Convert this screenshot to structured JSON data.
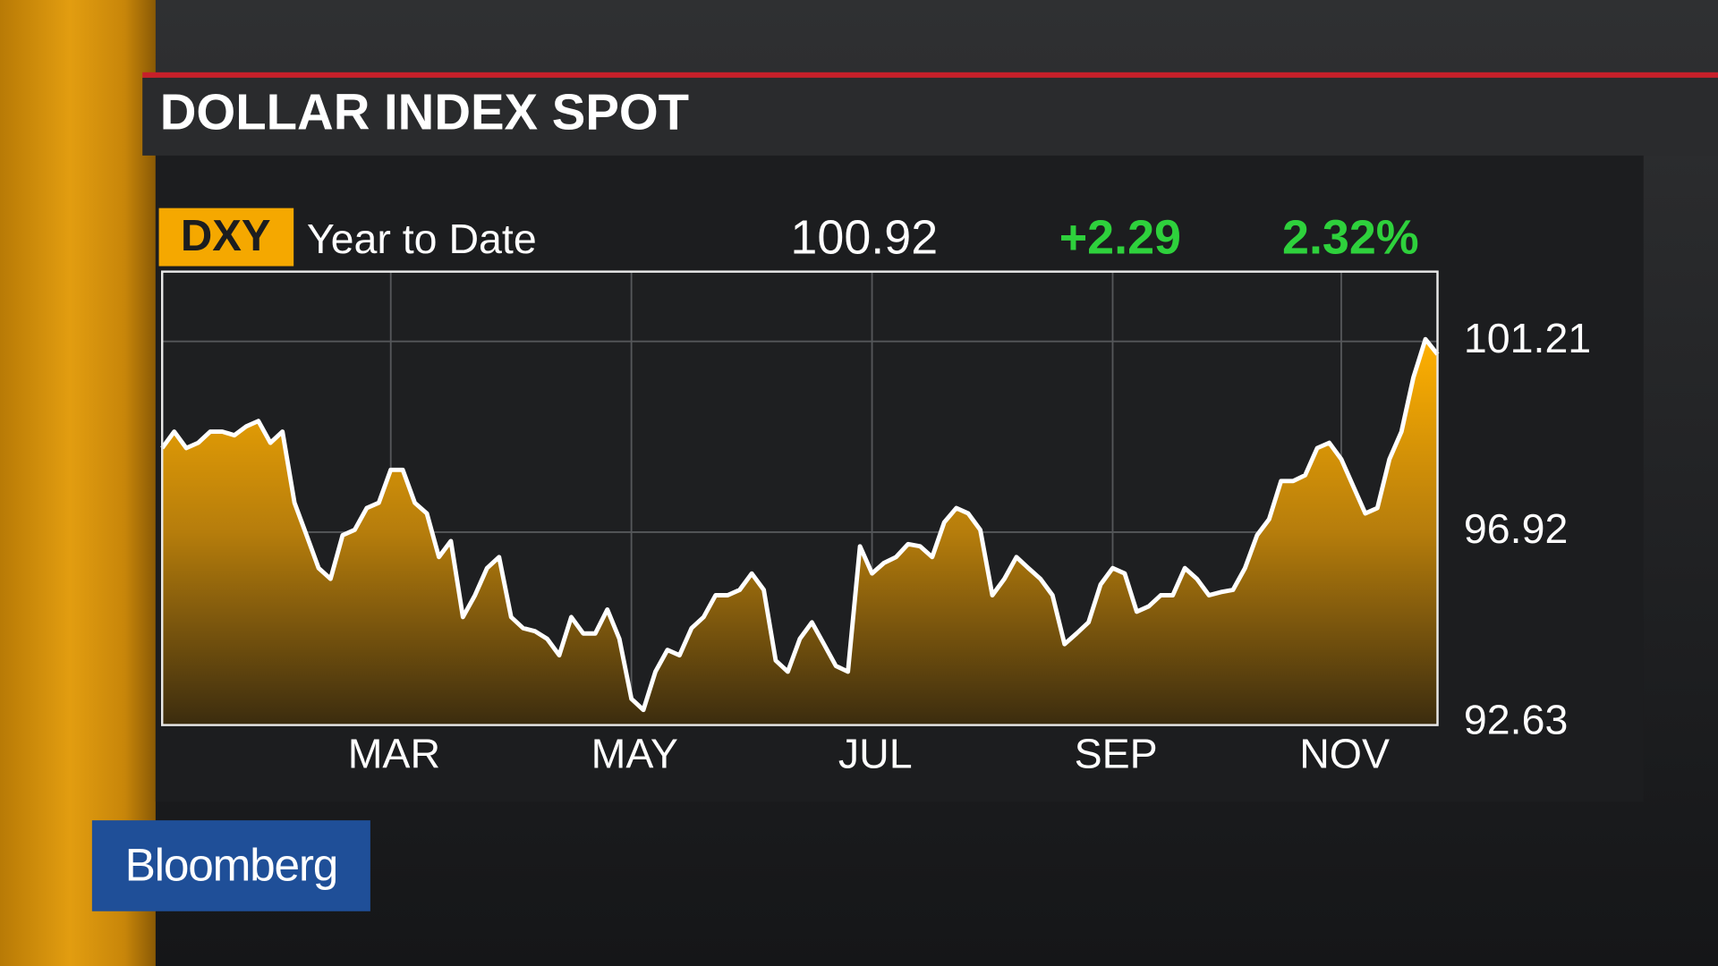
{
  "chart_data": {
    "type": "area",
    "title": "DOLLAR INDEX SPOT",
    "ticker": "DXY",
    "period": "Year to Date",
    "last": "100.92",
    "change": "+2.29",
    "change_pct": "2.32%",
    "brand": "Bloomberg",
    "color": "#f5a800",
    "line_color": "#ffffff",
    "grid": true,
    "ylim": [
      92.58,
      102.78
    ],
    "yticks": [
      101.21,
      96.92,
      92.63
    ],
    "categories": [
      null,
      null,
      null,
      null,
      null,
      null,
      null,
      null,
      null,
      null,
      null,
      null,
      null,
      null,
      null,
      null,
      null,
      null,
      null,
      "MAR",
      null,
      null,
      null,
      null,
      null,
      null,
      null,
      null,
      null,
      null,
      null,
      null,
      null,
      null,
      null,
      null,
      null,
      null,
      null,
      "MAY",
      null,
      null,
      null,
      null,
      null,
      null,
      null,
      null,
      null,
      null,
      null,
      null,
      null,
      null,
      null,
      null,
      null,
      null,
      null,
      "JUL",
      null,
      null,
      null,
      null,
      null,
      null,
      null,
      null,
      null,
      null,
      null,
      null,
      null,
      null,
      null,
      null,
      null,
      null,
      null,
      "SEP",
      null,
      null,
      null,
      null,
      null,
      null,
      null,
      null,
      null,
      null,
      null,
      null,
      null,
      null,
      null,
      null,
      null,
      null,
      "NOV",
      null,
      null,
      null,
      null,
      null,
      null,
      null,
      null
    ],
    "values": [
      98.81,
      99.18,
      98.81,
      98.93,
      99.18,
      99.18,
      99.1,
      99.3,
      99.42,
      98.93,
      99.18,
      97.58,
      96.85,
      96.11,
      95.87,
      96.85,
      96.97,
      97.46,
      97.58,
      98.32,
      98.32,
      97.58,
      97.34,
      96.36,
      96.72,
      95.01,
      95.5,
      96.11,
      96.36,
      95.01,
      94.76,
      94.69,
      94.52,
      94.15,
      95.01,
      94.64,
      94.64,
      95.18,
      94.52,
      93.17,
      92.92,
      93.78,
      94.27,
      94.15,
      94.76,
      95.01,
      95.5,
      95.5,
      95.62,
      95.99,
      95.62,
      94.03,
      93.78,
      94.52,
      94.89,
      94.4,
      93.91,
      93.78,
      96.6,
      95.99,
      96.23,
      96.36,
      96.65,
      96.6,
      96.36,
      97.14,
      97.46,
      97.34,
      96.97,
      95.5,
      95.87,
      96.36,
      96.11,
      95.87,
      95.5,
      94.4,
      94.64,
      94.89,
      95.74,
      96.11,
      95.99,
      95.13,
      95.25,
      95.5,
      95.5,
      96.11,
      95.87,
      95.5,
      95.57,
      95.62,
      96.11,
      96.85,
      97.21,
      98.07,
      98.07,
      98.2,
      98.81,
      98.93,
      98.56,
      97.95,
      97.34,
      97.46,
      98.56,
      99.18,
      100.4,
      101.26,
      100.92
    ]
  }
}
